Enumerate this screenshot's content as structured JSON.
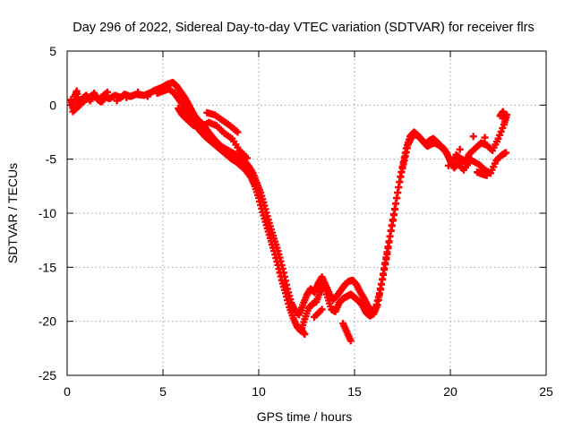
{
  "chart_data": {
    "type": "scatter",
    "title": "Day 296 of 2022, Sidereal Day-to-day VTEC variation (SDTVAR) for receiver flrs",
    "xlabel": "GPS time / hours",
    "ylabel": "SDTVAR / TECUs",
    "xlim": [
      0,
      25
    ],
    "ylim": [
      -25,
      5
    ],
    "xticks": [
      0,
      5,
      10,
      15,
      20,
      25
    ],
    "yticks": [
      -25,
      -20,
      -15,
      -10,
      -5,
      0,
      5
    ],
    "grid": true,
    "marker": "+",
    "series_color": "#ff0000",
    "series": [
      {
        "name": "SDTVAR",
        "points": [
          [
            0.2,
            0.5
          ],
          [
            0.3,
            -0.3
          ],
          [
            0.4,
            0.8
          ],
          [
            0.5,
            1.3
          ],
          [
            0.6,
            0.2
          ],
          [
            0.8,
            0.6
          ],
          [
            1.0,
            0.9
          ],
          [
            1.2,
            0.4
          ],
          [
            1.4,
            1.1
          ],
          [
            1.6,
            0.5
          ],
          [
            1.8,
            0.3
          ],
          [
            2.0,
            0.8
          ],
          [
            2.2,
            0.6
          ],
          [
            2.5,
            0.9
          ],
          [
            2.8,
            0.7
          ],
          [
            3.0,
            1.0
          ],
          [
            3.3,
            0.8
          ],
          [
            3.6,
            1.0
          ],
          [
            4.0,
            0.9
          ],
          [
            4.3,
            1.1
          ],
          [
            4.6,
            1.4
          ],
          [
            4.9,
            1.6
          ],
          [
            5.2,
            1.9
          ],
          [
            5.5,
            2.1
          ],
          [
            5.7,
            1.8
          ],
          [
            5.9,
            1.3
          ],
          [
            6.1,
            0.8
          ],
          [
            6.3,
            0.2
          ],
          [
            6.5,
            -0.5
          ],
          [
            6.7,
            -1.1
          ],
          [
            6.9,
            -1.5
          ],
          [
            7.1,
            -1.8
          ],
          [
            7.3,
            -2.3
          ],
          [
            7.5,
            -2.8
          ],
          [
            7.7,
            -3.2
          ],
          [
            7.9,
            -3.6
          ],
          [
            8.1,
            -3.9
          ],
          [
            8.3,
            -4.1
          ],
          [
            8.5,
            -4.3
          ],
          [
            8.7,
            -4.5
          ],
          [
            8.9,
            -4.7
          ],
          [
            9.1,
            -5.0
          ],
          [
            9.3,
            -5.3
          ],
          [
            9.5,
            -5.7
          ],
          [
            9.7,
            -6.3
          ],
          [
            9.9,
            -7.2
          ],
          [
            10.1,
            -8.1
          ],
          [
            10.3,
            -9.3
          ],
          [
            10.5,
            -10.6
          ],
          [
            10.7,
            -11.8
          ],
          [
            10.9,
            -12.9
          ],
          [
            11.1,
            -14.1
          ],
          [
            11.3,
            -15.5
          ],
          [
            11.5,
            -17.0
          ],
          [
            11.7,
            -18.3
          ],
          [
            11.9,
            -19.0
          ],
          [
            12.1,
            -19.4
          ],
          [
            12.3,
            -18.5
          ],
          [
            12.5,
            -17.6
          ],
          [
            12.7,
            -17.0
          ],
          [
            12.9,
            -17.3
          ],
          [
            13.1,
            -16.5
          ],
          [
            13.3,
            -15.9
          ],
          [
            13.5,
            -16.7
          ],
          [
            13.7,
            -17.5
          ],
          [
            13.9,
            -18.0
          ],
          [
            14.1,
            -17.6
          ],
          [
            14.3,
            -17.1
          ],
          [
            14.5,
            -16.6
          ],
          [
            14.7,
            -16.3
          ],
          [
            14.9,
            -16.2
          ],
          [
            15.1,
            -16.6
          ],
          [
            15.3,
            -17.3
          ],
          [
            15.5,
            -17.9
          ],
          [
            15.7,
            -18.6
          ],
          [
            15.9,
            -19.0
          ],
          [
            16.1,
            -18.8
          ],
          [
            16.3,
            -17.4
          ],
          [
            16.5,
            -15.7
          ],
          [
            16.7,
            -13.8
          ],
          [
            16.9,
            -11.6
          ],
          [
            17.1,
            -9.6
          ],
          [
            17.3,
            -7.6
          ],
          [
            17.5,
            -5.7
          ],
          [
            17.7,
            -4.0
          ],
          [
            17.9,
            -2.9
          ],
          [
            18.1,
            -2.5
          ],
          [
            18.3,
            -2.8
          ],
          [
            18.5,
            -3.2
          ],
          [
            18.7,
            -3.6
          ],
          [
            18.9,
            -3.3
          ],
          [
            19.1,
            -3.1
          ],
          [
            19.3,
            -3.4
          ],
          [
            19.5,
            -3.8
          ],
          [
            19.7,
            -4.1
          ],
          [
            19.9,
            -4.8
          ],
          [
            20.1,
            -5.5
          ],
          [
            20.3,
            -4.6
          ],
          [
            20.5,
            -4.9
          ],
          [
            20.8,
            -5.2
          ],
          [
            21.0,
            -4.5
          ],
          [
            21.3,
            -4.0
          ],
          [
            21.6,
            -3.5
          ],
          [
            21.9,
            -3.7
          ],
          [
            22.2,
            -4.2
          ],
          [
            22.5,
            -3.1
          ],
          [
            22.8,
            -1.8
          ],
          [
            22.95,
            -0.9
          ],
          [
            0.3,
            -0.6
          ],
          [
            0.6,
            -0.1
          ],
          [
            0.9,
            0.4
          ],
          [
            1.3,
            0.9
          ],
          [
            1.7,
            0.6
          ],
          [
            2.1,
            1.2
          ],
          [
            2.6,
            0.4
          ],
          [
            3.1,
            0.7
          ],
          [
            3.7,
            1.2
          ],
          [
            4.2,
            0.8
          ],
          [
            4.7,
            1.1
          ],
          [
            5.0,
            1.3
          ],
          [
            5.3,
            1.5
          ],
          [
            5.6,
            1.1
          ],
          [
            5.8,
            0.6
          ],
          [
            6.0,
            0.1
          ],
          [
            6.2,
            -0.4
          ],
          [
            6.4,
            -1.0
          ],
          [
            6.6,
            -1.6
          ],
          [
            6.8,
            -2.1
          ],
          [
            7.0,
            -2.5
          ],
          [
            7.2,
            -2.9
          ],
          [
            7.4,
            -3.2
          ],
          [
            7.6,
            -3.5
          ],
          [
            7.8,
            -3.8
          ],
          [
            8.0,
            -4.1
          ],
          [
            8.2,
            -4.4
          ],
          [
            8.4,
            -4.7
          ],
          [
            8.6,
            -5.0
          ],
          [
            8.8,
            -5.2
          ],
          [
            9.0,
            -5.5
          ],
          [
            9.2,
            -5.8
          ],
          [
            9.4,
            -6.2
          ],
          [
            9.6,
            -6.7
          ],
          [
            9.8,
            -7.5
          ],
          [
            10.0,
            -8.6
          ],
          [
            10.2,
            -9.9
          ],
          [
            10.4,
            -11.1
          ],
          [
            10.6,
            -12.3
          ],
          [
            10.8,
            -13.5
          ],
          [
            11.0,
            -14.8
          ],
          [
            11.2,
            -16.2
          ],
          [
            11.4,
            -17.4
          ],
          [
            11.6,
            -18.7
          ],
          [
            11.8,
            -19.7
          ],
          [
            12.0,
            -20.5
          ],
          [
            12.2,
            -20.9
          ],
          [
            12.4,
            -19.8
          ],
          [
            12.6,
            -18.8
          ],
          [
            12.8,
            -18.4
          ],
          [
            13.0,
            -18.2
          ],
          [
            13.2,
            -17.3
          ],
          [
            13.4,
            -16.6
          ],
          [
            13.6,
            -17.8
          ],
          [
            13.8,
            -18.9
          ],
          [
            14.0,
            -19.1
          ],
          [
            14.2,
            -18.3
          ],
          [
            14.4,
            -17.9
          ],
          [
            14.6,
            -17.7
          ],
          [
            14.8,
            -17.5
          ],
          [
            15.0,
            -17.8
          ],
          [
            15.2,
            -18.1
          ],
          [
            15.4,
            -18.5
          ],
          [
            15.6,
            -19.2
          ],
          [
            15.8,
            -19.5
          ],
          [
            16.0,
            -19.3
          ],
          [
            16.2,
            -18.5
          ],
          [
            16.4,
            -16.6
          ],
          [
            16.6,
            -14.6
          ],
          [
            16.8,
            -12.6
          ],
          [
            17.0,
            -10.7
          ],
          [
            17.2,
            -8.6
          ],
          [
            17.4,
            -6.6
          ],
          [
            17.6,
            -5.1
          ],
          [
            17.8,
            -3.6
          ],
          [
            18.0,
            -2.9
          ],
          [
            18.2,
            -2.7
          ],
          [
            18.4,
            -3.0
          ],
          [
            18.6,
            -3.4
          ],
          [
            18.8,
            -3.8
          ],
          [
            19.0,
            -3.6
          ],
          [
            19.2,
            -3.5
          ],
          [
            19.4,
            -3.7
          ],
          [
            19.6,
            -4.0
          ],
          [
            19.8,
            -4.4
          ],
          [
            20.0,
            -5.2
          ],
          [
            20.2,
            -5.8
          ],
          [
            20.4,
            -5.4
          ],
          [
            20.7,
            -6.0
          ],
          [
            21.1,
            -5.1
          ],
          [
            21.5,
            -5.5
          ],
          [
            21.8,
            -6.0
          ],
          [
            22.1,
            -6.3
          ],
          [
            22.4,
            -5.1
          ],
          [
            22.7,
            -4.6
          ],
          [
            22.9,
            -4.4
          ],
          [
            12.2,
            -20.7
          ],
          [
            12.4,
            -21.2
          ],
          [
            12.9,
            -19.6
          ],
          [
            13.3,
            -18.9
          ],
          [
            14.4,
            -20.2
          ],
          [
            14.6,
            -21.0
          ],
          [
            14.8,
            -21.8
          ],
          [
            5.8,
            -0.3
          ],
          [
            6.0,
            -0.9
          ],
          [
            6.3,
            -1.4
          ],
          [
            6.6,
            -1.9
          ],
          [
            7.0,
            -2.0
          ],
          [
            7.4,
            -1.6
          ],
          [
            7.8,
            -1.9
          ],
          [
            8.2,
            -2.6
          ],
          [
            8.6,
            -3.1
          ],
          [
            9.0,
            -4.2
          ],
          [
            9.4,
            -4.9
          ],
          [
            7.3,
            -0.7
          ],
          [
            7.7,
            -0.9
          ],
          [
            8.1,
            -1.4
          ],
          [
            8.5,
            -1.9
          ],
          [
            8.9,
            -2.5
          ],
          [
            22.6,
            -1.0
          ],
          [
            22.75,
            -0.6
          ],
          [
            22.85,
            -1.3
          ],
          [
            21.2,
            -2.9
          ],
          [
            21.8,
            -3.0
          ],
          [
            20.6,
            -5.4
          ],
          [
            21.4,
            -6.2
          ],
          [
            21.7,
            -6.4
          ],
          [
            21.9,
            -6.5
          ],
          [
            20.5,
            -4.1
          ],
          [
            19.9,
            -5.6
          ]
        ]
      }
    ]
  }
}
